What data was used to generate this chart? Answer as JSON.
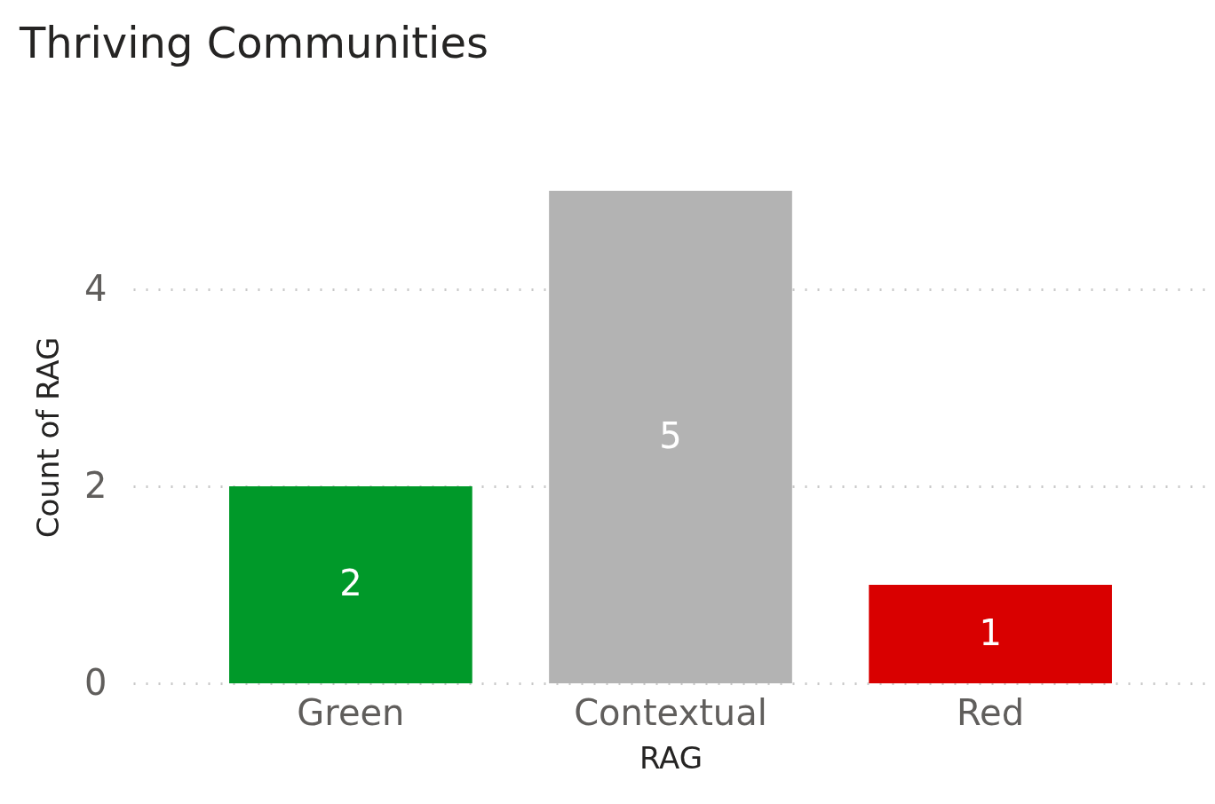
{
  "chart_data": {
    "type": "bar",
    "title": "Thriving Communities",
    "xlabel": "RAG",
    "ylabel": "Count of RAG",
    "categories": [
      "Green",
      "Contextual",
      "Red"
    ],
    "values": [
      2,
      5,
      1
    ],
    "colors": [
      "#009929",
      "#b3b3b3",
      "#d90000"
    ],
    "ylim": [
      0,
      5
    ],
    "yticks": [
      0,
      2,
      4
    ],
    "grid": "y",
    "data_labels": true
  }
}
